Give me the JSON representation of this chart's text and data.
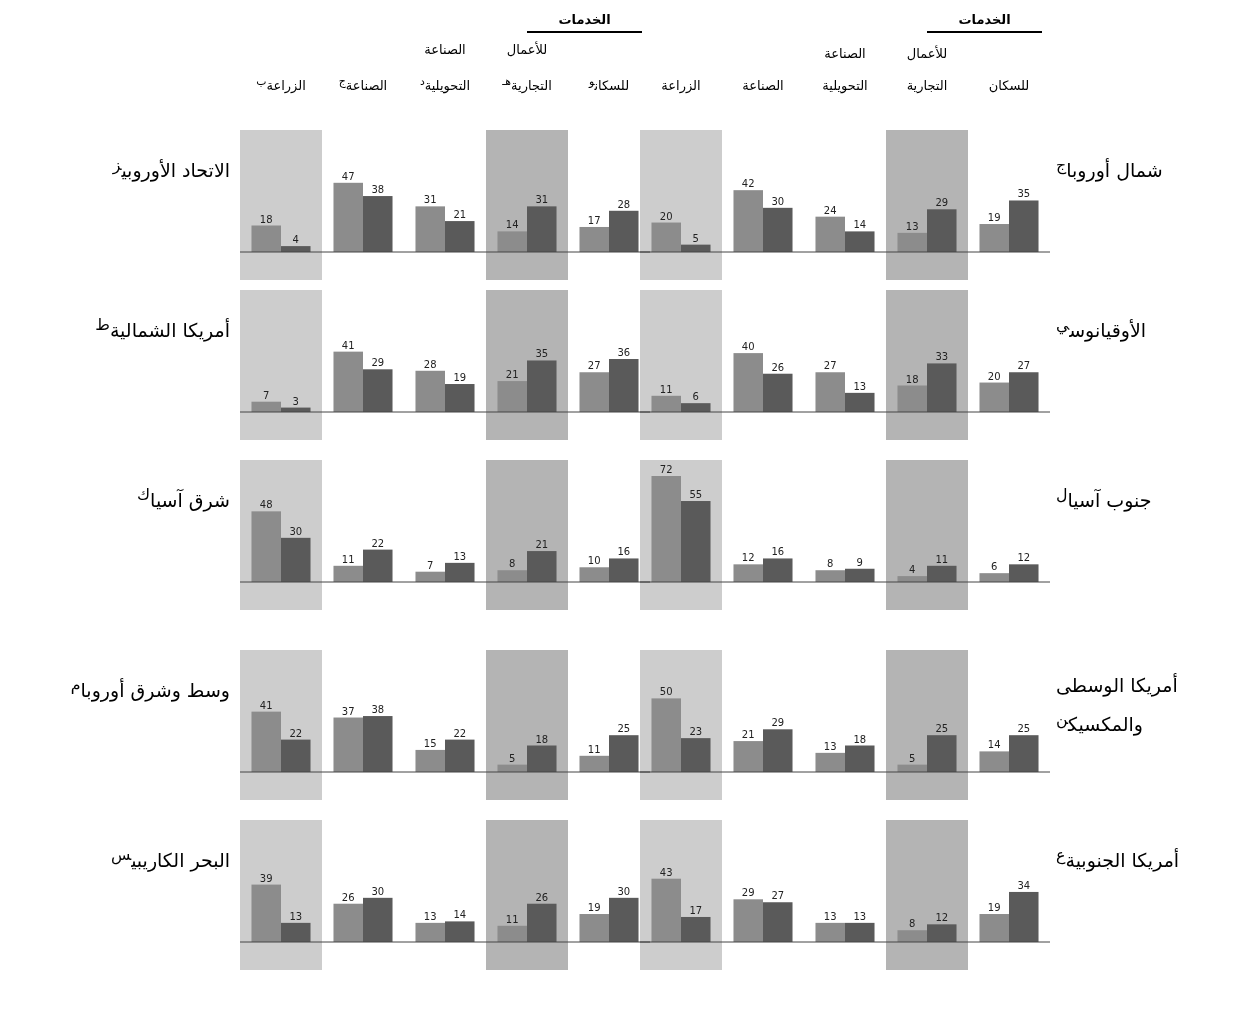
{
  "chart_data": [
    {
      "type": "bar",
      "title": "شمال أوروبا$^{ج}$",
      "categories": [
        "الزراعة",
        "الصناعة",
        "الصناعة التحويلية",
        "للأعمال التجارية",
        "للسكان"
      ],
      "annotations": [
        "الخدمات"
      ],
      "data_labels": true,
      "bands": [
        {
          "axis": "x",
          "from": "الزراعة",
          "to": "الزراعة",
          "color": "#cdcdcd"
        },
        {
          "axis": "x",
          "from": "للأعمال التجارية",
          "to": "للأعمال التجارية",
          "color": "#b4b4b4"
        }
      ],
      "series": [
        {
          "color": "#8c8c8c",
          "values": [
            20,
            42,
            24,
            13,
            19
          ]
        },
        {
          "color": "#5a5a5a",
          "values": [
            5,
            30,
            14,
            29,
            35
          ]
        }
      ]
    },
    {
      "type": "bar",
      "title": "الاتحاد الأوروبي$^{ز}$",
      "categories": [
        "الزراعة$^{ب}$",
        "الصناعة$^{ج}$",
        "الصناعة التحويلية$^{د}$",
        "للأعمال التجارية$^{هـ}$",
        "للسكان$^{و}$"
      ],
      "annotations": [
        "الخدمات"
      ],
      "data_labels": true,
      "bands": [
        {
          "axis": "x",
          "from": "الزراعة$^{ب}$",
          "to": "الزراعة$^{ب}$",
          "color": "#cdcdcd"
        },
        {
          "axis": "x",
          "from": "للأعمال التجارية$^{هـ}$",
          "to": "للأعمال التجارية$^{هـ}$",
          "color": "#b4b4b4"
        }
      ],
      "series": [
        {
          "color": "#8c8c8c",
          "values": [
            18,
            47,
            31,
            14,
            17
          ]
        },
        {
          "color": "#5a5a5a",
          "values": [
            4,
            38,
            21,
            31,
            28
          ]
        }
      ]
    },
    {
      "type": "bar",
      "title": "الأوقيانوس$^{ي}$",
      "categories": [
        null,
        null,
        null,
        null,
        null
      ],
      "data_labels": true,
      "series": [
        {
          "color": "#8c8c8c",
          "values": [
            11,
            40,
            27,
            18,
            20
          ]
        },
        {
          "color": "#5a5a5a",
          "values": [
            6,
            26,
            13,
            33,
            27
          ]
        }
      ]
    },
    {
      "type": "bar",
      "title": "أمريكا الشمالية$^{ط}$",
      "categories": [
        null,
        null,
        null,
        null,
        null
      ],
      "data_labels": true,
      "series": [
        {
          "color": "#8c8c8c",
          "values": [
            7,
            41,
            28,
            21,
            27
          ]
        },
        {
          "color": "#5a5a5a",
          "values": [
            3,
            29,
            19,
            35,
            36
          ]
        }
      ]
    },
    {
      "type": "bar",
      "title": "جنوب آسيا$^{ل}$",
      "categories": [
        null,
        null,
        null,
        null,
        null
      ],
      "data_labels": true,
      "series": [
        {
          "color": "#8c8c8c",
          "values": [
            72,
            12,
            8,
            4,
            6
          ]
        },
        {
          "color": "#5a5a5a",
          "values": [
            55,
            16,
            9,
            11,
            12
          ]
        }
      ]
    },
    {
      "type": "bar",
      "title": "شرق آسيا$^{ك}$",
      "categories": [
        null,
        null,
        null,
        null,
        null
      ],
      "data_labels": true,
      "series": [
        {
          "color": "#8c8c8c",
          "values": [
            48,
            11,
            7,
            8,
            10
          ]
        },
        {
          "color": "#5a5a5a",
          "values": [
            30,
            22,
            13,
            21,
            16
          ]
        }
      ]
    },
    {
      "type": "bar",
      "title": "أمريكا الوسطى والمكسيك$^{ن}$",
      "categories": [
        null,
        null,
        null,
        null,
        null
      ],
      "data_labels": true,
      "series": [
        {
          "color": "#8c8c8c",
          "values": [
            50,
            21,
            13,
            5,
            14
          ]
        },
        {
          "color": "#5a5a5a",
          "values": [
            23,
            29,
            18,
            25,
            25
          ]
        }
      ]
    },
    {
      "type": "bar",
      "title": "وسط وشرق أوروبا$^{م}$",
      "categories": [
        null,
        null,
        null,
        null,
        null
      ],
      "data_labels": true,
      "series": [
        {
          "color": "#8c8c8c",
          "values": [
            41,
            37,
            15,
            5,
            11
          ]
        },
        {
          "color": "#5a5a5a",
          "values": [
            22,
            38,
            22,
            18,
            25
          ]
        }
      ]
    },
    {
      "type": "bar",
      "title": "أمريكا الجنوبية$^{ع}$",
      "categories": [
        null,
        null,
        null,
        null,
        null
      ],
      "data_labels": true,
      "series": [
        {
          "color": "#8c8c8c",
          "values": [
            43,
            29,
            13,
            8,
            19
          ]
        },
        {
          "color": "#5a5a5a",
          "values": [
            17,
            27,
            13,
            12,
            34
          ]
        }
      ]
    },
    {
      "type": "bar",
      "title": "البحر الكاريبي$^{س}$",
      "categories": [
        null,
        null,
        null,
        null,
        null
      ],
      "data_labels": true,
      "series": [
        {
          "color": "#8c8c8c",
          "values": [
            39,
            26,
            13,
            11,
            19
          ]
        },
        {
          "color": "#5a5a5a",
          "values": [
            13,
            30,
            14,
            26,
            30
          ]
        }
      ]
    }
  ]
}
